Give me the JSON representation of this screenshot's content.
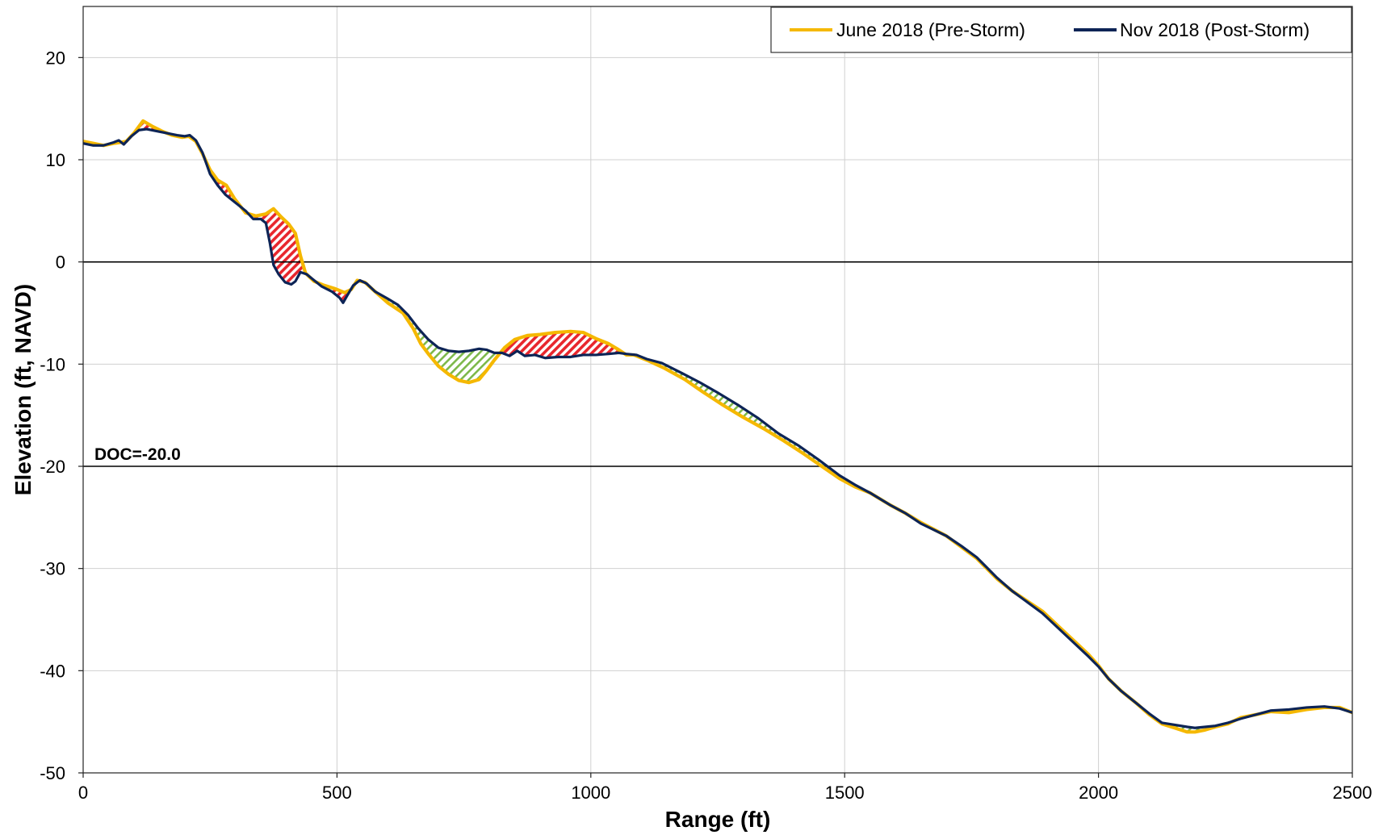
{
  "chart_data": {
    "type": "line",
    "xlabel": "Range (ft)",
    "ylabel": "Elevation (ft, NAVD)",
    "xlim": [
      0,
      2500
    ],
    "ylim": [
      -50,
      25
    ],
    "xticks": [
      0,
      500,
      1000,
      1500,
      2000,
      2500
    ],
    "yticks": [
      -50,
      -40,
      -30,
      -20,
      -10,
      0,
      10,
      20
    ],
    "grid": true,
    "legend_position": "top-right",
    "reference_lines": [
      {
        "y": 0,
        "label": ""
      },
      {
        "y": -20,
        "label": "DOC=-20.0"
      }
    ],
    "series": [
      {
        "name": "June 2018 (Pre-Storm)",
        "color": "#F5B800",
        "points": [
          [
            0,
            11.8
          ],
          [
            20,
            11.6
          ],
          [
            40,
            11.4
          ],
          [
            60,
            11.6
          ],
          [
            75,
            11.7
          ],
          [
            85,
            11.8
          ],
          [
            100,
            12.6
          ],
          [
            118,
            13.8
          ],
          [
            135,
            13.3
          ],
          [
            155,
            12.8
          ],
          [
            175,
            12.4
          ],
          [
            195,
            12.2
          ],
          [
            208,
            12.3
          ],
          [
            222,
            11.8
          ],
          [
            235,
            10.6
          ],
          [
            250,
            9.0
          ],
          [
            265,
            8.0
          ],
          [
            282,
            7.5
          ],
          [
            298,
            6.2
          ],
          [
            320,
            4.8
          ],
          [
            340,
            4.5
          ],
          [
            360,
            4.7
          ],
          [
            375,
            5.2
          ],
          [
            390,
            4.4
          ],
          [
            405,
            3.7
          ],
          [
            418,
            2.8
          ],
          [
            428,
            0.6
          ],
          [
            438,
            -1.1
          ],
          [
            455,
            -1.9
          ],
          [
            475,
            -2.3
          ],
          [
            495,
            -2.6
          ],
          [
            515,
            -3.0
          ],
          [
            528,
            -2.7
          ],
          [
            540,
            -1.8
          ],
          [
            555,
            -2.0
          ],
          [
            575,
            -2.9
          ],
          [
            600,
            -4.0
          ],
          [
            630,
            -5.0
          ],
          [
            650,
            -6.5
          ],
          [
            665,
            -8.0
          ],
          [
            680,
            -9.0
          ],
          [
            700,
            -10.2
          ],
          [
            720,
            -11.0
          ],
          [
            740,
            -11.6
          ],
          [
            760,
            -11.8
          ],
          [
            780,
            -11.5
          ],
          [
            795,
            -10.6
          ],
          [
            810,
            -9.6
          ],
          [
            830,
            -8.4
          ],
          [
            850,
            -7.6
          ],
          [
            875,
            -7.2
          ],
          [
            900,
            -7.1
          ],
          [
            930,
            -6.9
          ],
          [
            960,
            -6.8
          ],
          [
            985,
            -6.9
          ],
          [
            1010,
            -7.5
          ],
          [
            1035,
            -8.0
          ],
          [
            1055,
            -8.6
          ],
          [
            1070,
            -9.1
          ],
          [
            1085,
            -9.1
          ],
          [
            1110,
            -9.6
          ],
          [
            1145,
            -10.4
          ],
          [
            1185,
            -11.5
          ],
          [
            1220,
            -12.7
          ],
          [
            1260,
            -14.0
          ],
          [
            1300,
            -15.2
          ],
          [
            1340,
            -16.3
          ],
          [
            1380,
            -17.5
          ],
          [
            1420,
            -18.8
          ],
          [
            1455,
            -20.0
          ],
          [
            1490,
            -21.2
          ],
          [
            1520,
            -22.0
          ],
          [
            1550,
            -22.6
          ],
          [
            1590,
            -23.8
          ],
          [
            1620,
            -24.6
          ],
          [
            1650,
            -25.5
          ],
          [
            1700,
            -26.8
          ],
          [
            1730,
            -27.9
          ],
          [
            1760,
            -29.0
          ],
          [
            1780,
            -30.0
          ],
          [
            1800,
            -31.0
          ],
          [
            1830,
            -32.2
          ],
          [
            1860,
            -33.2
          ],
          [
            1890,
            -34.2
          ],
          [
            1920,
            -35.6
          ],
          [
            1950,
            -37.0
          ],
          [
            1980,
            -38.4
          ],
          [
            2000,
            -39.5
          ],
          [
            2020,
            -40.8
          ],
          [
            2045,
            -42.0
          ],
          [
            2075,
            -43.2
          ],
          [
            2100,
            -44.3
          ],
          [
            2125,
            -45.2
          ],
          [
            2150,
            -45.6
          ],
          [
            2175,
            -46.0
          ],
          [
            2190,
            -46.0
          ],
          [
            2210,
            -45.8
          ],
          [
            2230,
            -45.5
          ],
          [
            2255,
            -45.2
          ],
          [
            2280,
            -44.6
          ],
          [
            2310,
            -44.3
          ],
          [
            2340,
            -44.0
          ],
          [
            2375,
            -44.1
          ],
          [
            2410,
            -43.8
          ],
          [
            2445,
            -43.6
          ],
          [
            2475,
            -43.6
          ],
          [
            2500,
            -44.1
          ]
        ]
      },
      {
        "name": "Nov 2018 (Post-Storm)",
        "color": "#0D2456",
        "points": [
          [
            0,
            11.6
          ],
          [
            20,
            11.4
          ],
          [
            40,
            11.4
          ],
          [
            60,
            11.7
          ],
          [
            70,
            11.9
          ],
          [
            80,
            11.5
          ],
          [
            95,
            12.3
          ],
          [
            110,
            12.9
          ],
          [
            125,
            13.0
          ],
          [
            145,
            12.8
          ],
          [
            165,
            12.6
          ],
          [
            185,
            12.4
          ],
          [
            200,
            12.3
          ],
          [
            210,
            12.4
          ],
          [
            222,
            11.9
          ],
          [
            235,
            10.7
          ],
          [
            250,
            8.6
          ],
          [
            265,
            7.5
          ],
          [
            280,
            6.6
          ],
          [
            300,
            5.8
          ],
          [
            320,
            5.0
          ],
          [
            335,
            4.2
          ],
          [
            350,
            4.2
          ],
          [
            360,
            3.8
          ],
          [
            368,
            1.8
          ],
          [
            375,
            -0.3
          ],
          [
            385,
            -1.2
          ],
          [
            398,
            -2.0
          ],
          [
            410,
            -2.2
          ],
          [
            418,
            -1.9
          ],
          [
            428,
            -1.0
          ],
          [
            440,
            -1.2
          ],
          [
            455,
            -1.8
          ],
          [
            470,
            -2.4
          ],
          [
            490,
            -2.9
          ],
          [
            505,
            -3.5
          ],
          [
            512,
            -4.0
          ],
          [
            520,
            -3.3
          ],
          [
            532,
            -2.3
          ],
          [
            545,
            -1.8
          ],
          [
            558,
            -2.1
          ],
          [
            575,
            -2.9
          ],
          [
            600,
            -3.6
          ],
          [
            620,
            -4.2
          ],
          [
            640,
            -5.2
          ],
          [
            660,
            -6.5
          ],
          [
            680,
            -7.6
          ],
          [
            700,
            -8.4
          ],
          [
            720,
            -8.7
          ],
          [
            740,
            -8.8
          ],
          [
            760,
            -8.7
          ],
          [
            780,
            -8.5
          ],
          [
            795,
            -8.6
          ],
          [
            810,
            -8.9
          ],
          [
            825,
            -8.9
          ],
          [
            840,
            -9.2
          ],
          [
            855,
            -8.7
          ],
          [
            870,
            -9.2
          ],
          [
            890,
            -9.1
          ],
          [
            910,
            -9.4
          ],
          [
            935,
            -9.3
          ],
          [
            960,
            -9.3
          ],
          [
            985,
            -9.1
          ],
          [
            1010,
            -9.1
          ],
          [
            1035,
            -9.0
          ],
          [
            1055,
            -8.9
          ],
          [
            1070,
            -9.0
          ],
          [
            1090,
            -9.1
          ],
          [
            1110,
            -9.5
          ],
          [
            1140,
            -9.9
          ],
          [
            1180,
            -10.9
          ],
          [
            1215,
            -11.8
          ],
          [
            1250,
            -12.8
          ],
          [
            1290,
            -14.0
          ],
          [
            1330,
            -15.3
          ],
          [
            1370,
            -16.8
          ],
          [
            1410,
            -18.0
          ],
          [
            1450,
            -19.4
          ],
          [
            1490,
            -20.9
          ],
          [
            1520,
            -21.8
          ],
          [
            1550,
            -22.6
          ],
          [
            1590,
            -23.8
          ],
          [
            1620,
            -24.6
          ],
          [
            1650,
            -25.6
          ],
          [
            1700,
            -26.8
          ],
          [
            1730,
            -27.8
          ],
          [
            1760,
            -28.9
          ],
          [
            1780,
            -29.9
          ],
          [
            1800,
            -30.9
          ],
          [
            1830,
            -32.2
          ],
          [
            1860,
            -33.3
          ],
          [
            1890,
            -34.4
          ],
          [
            1920,
            -35.8
          ],
          [
            1950,
            -37.2
          ],
          [
            1980,
            -38.6
          ],
          [
            2000,
            -39.6
          ],
          [
            2020,
            -40.8
          ],
          [
            2045,
            -42.0
          ],
          [
            2075,
            -43.2
          ],
          [
            2100,
            -44.2
          ],
          [
            2125,
            -45.1
          ],
          [
            2150,
            -45.3
          ],
          [
            2175,
            -45.5
          ],
          [
            2190,
            -45.6
          ],
          [
            2210,
            -45.5
          ],
          [
            2230,
            -45.4
          ],
          [
            2255,
            -45.1
          ],
          [
            2280,
            -44.7
          ],
          [
            2310,
            -44.3
          ],
          [
            2340,
            -43.9
          ],
          [
            2375,
            -43.8
          ],
          [
            2410,
            -43.6
          ],
          [
            2445,
            -43.5
          ],
          [
            2475,
            -43.7
          ],
          [
            2500,
            -44.1
          ]
        ]
      }
    ]
  }
}
